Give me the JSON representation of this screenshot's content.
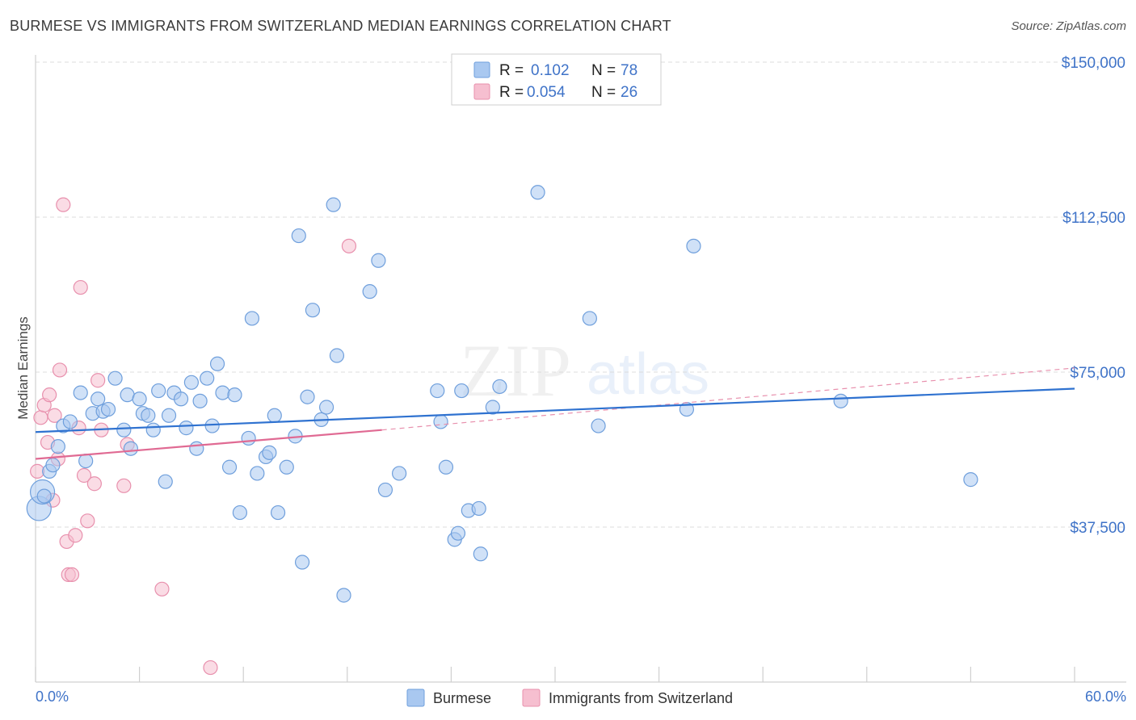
{
  "header": {
    "title": "BURMESE VS IMMIGRANTS FROM SWITZERLAND MEDIAN EARNINGS CORRELATION CHART",
    "source": "Source: ZipAtlas.com"
  },
  "watermark": {
    "zip": "ZIP",
    "atlas": "atlas"
  },
  "legend_top": [
    {
      "r_label": "R =",
      "r_value": "0.102",
      "n_label": "N =",
      "n_value": "78"
    },
    {
      "r_label": "R =",
      "r_value": "0.054",
      "n_label": "N =",
      "n_value": "26"
    }
  ],
  "legend_bottom": [
    "Burmese",
    "Immigrants from Switzerland"
  ],
  "colors": {
    "burmese_fill": "#a9c8f0",
    "burmese_stroke": "#6f9fdc",
    "burmese_line": "#2f72d0",
    "swiss_fill": "#f6bfd0",
    "swiss_stroke": "#e890ad",
    "swiss_line": "#e06a93",
    "axis_label": "#3f73c8",
    "grid": "#dcdcdc"
  },
  "chart_data": {
    "type": "scatter",
    "title": "BURMESE VS IMMIGRANTS FROM SWITZERLAND MEDIAN EARNINGS CORRELATION CHART",
    "xlabel": "",
    "ylabel": "Median Earnings",
    "xlim": [
      0,
      60
    ],
    "ylim": [
      0,
      154000
    ],
    "x_tick_labels": [
      "0.0%",
      "60.0%"
    ],
    "y_ticks": [
      37500,
      75000,
      112500,
      150000
    ],
    "y_tick_labels": [
      "$37,500",
      "$75,000",
      "$112,500",
      "$150,000"
    ],
    "grid": true,
    "legend_position": "top-center",
    "series": [
      {
        "name": "Burmese",
        "r": 0.102,
        "n": 78,
        "trend": {
          "x": [
            0,
            60
          ],
          "y": [
            60500,
            71000
          ]
        },
        "points": [
          [
            0.5,
            45000
          ],
          [
            0.8,
            51000
          ],
          [
            1.0,
            52500
          ],
          [
            1.3,
            57000
          ],
          [
            1.6,
            62000
          ],
          [
            2.0,
            63000
          ],
          [
            2.6,
            70000
          ],
          [
            2.9,
            53500
          ],
          [
            3.3,
            65000
          ],
          [
            3.6,
            68500
          ],
          [
            3.9,
            65500
          ],
          [
            4.2,
            66000
          ],
          [
            4.6,
            73500
          ],
          [
            5.1,
            61000
          ],
          [
            5.3,
            69500
          ],
          [
            5.5,
            56500
          ],
          [
            6.0,
            68500
          ],
          [
            6.2,
            65000
          ],
          [
            6.5,
            64500
          ],
          [
            6.8,
            61000
          ],
          [
            7.1,
            70500
          ],
          [
            7.5,
            48500
          ],
          [
            7.7,
            64500
          ],
          [
            8.0,
            70000
          ],
          [
            8.4,
            68500
          ],
          [
            8.7,
            61500
          ],
          [
            9.0,
            72500
          ],
          [
            9.3,
            56500
          ],
          [
            9.5,
            68000
          ],
          [
            9.9,
            73500
          ],
          [
            10.2,
            62000
          ],
          [
            10.5,
            77000
          ],
          [
            10.8,
            70000
          ],
          [
            11.2,
            52000
          ],
          [
            11.5,
            69500
          ],
          [
            11.8,
            41000
          ],
          [
            12.3,
            59000
          ],
          [
            12.5,
            88000
          ],
          [
            12.8,
            50500
          ],
          [
            13.3,
            54500
          ],
          [
            13.5,
            55500
          ],
          [
            13.8,
            64500
          ],
          [
            14.0,
            41000
          ],
          [
            14.5,
            52000
          ],
          [
            15.0,
            59500
          ],
          [
            15.2,
            108000
          ],
          [
            15.4,
            29000
          ],
          [
            15.7,
            69000
          ],
          [
            16.0,
            90000
          ],
          [
            16.5,
            63500
          ],
          [
            16.8,
            66500
          ],
          [
            17.2,
            115500
          ],
          [
            17.4,
            79000
          ],
          [
            17.8,
            21000
          ],
          [
            19.3,
            94500
          ],
          [
            19.8,
            102000
          ],
          [
            20.2,
            46500
          ],
          [
            21.0,
            50500
          ],
          [
            23.2,
            70500
          ],
          [
            23.4,
            63000
          ],
          [
            23.7,
            52000
          ],
          [
            24.2,
            34500
          ],
          [
            24.4,
            36000
          ],
          [
            24.6,
            70500
          ],
          [
            25.0,
            41500
          ],
          [
            25.6,
            42000
          ],
          [
            25.7,
            31000
          ],
          [
            26.4,
            66500
          ],
          [
            26.8,
            71500
          ],
          [
            29.0,
            118500
          ],
          [
            32.0,
            88000
          ],
          [
            32.5,
            62000
          ],
          [
            37.6,
            66000
          ],
          [
            38.0,
            105500
          ],
          [
            46.5,
            68000
          ],
          [
            54.0,
            49000
          ]
        ],
        "big_points": [
          [
            0.2,
            42000
          ],
          [
            0.4,
            46000
          ]
        ]
      },
      {
        "name": "Immigrants from Switzerland",
        "r": 0.054,
        "n": 26,
        "trend": {
          "x": [
            0,
            20
          ],
          "y": [
            54000,
            61000
          ]
        },
        "trend_extension": {
          "x": [
            20,
            60
          ],
          "y": [
            61000,
            76000
          ]
        },
        "points": [
          [
            0.1,
            51000
          ],
          [
            0.3,
            64000
          ],
          [
            0.5,
            67000
          ],
          [
            0.7,
            58000
          ],
          [
            0.8,
            69500
          ],
          [
            1.0,
            44000
          ],
          [
            1.1,
            64500
          ],
          [
            1.3,
            54000
          ],
          [
            1.4,
            75500
          ],
          [
            1.6,
            115500
          ],
          [
            1.8,
            34000
          ],
          [
            1.9,
            26000
          ],
          [
            2.1,
            26000
          ],
          [
            2.3,
            35500
          ],
          [
            2.5,
            61500
          ],
          [
            2.6,
            95500
          ],
          [
            2.8,
            50000
          ],
          [
            3.0,
            39000
          ],
          [
            3.4,
            48000
          ],
          [
            3.6,
            73000
          ],
          [
            3.8,
            61000
          ],
          [
            5.1,
            47500
          ],
          [
            5.3,
            57500
          ],
          [
            7.3,
            22500
          ],
          [
            10.1,
            3500
          ],
          [
            18.1,
            105500
          ]
        ]
      }
    ]
  }
}
